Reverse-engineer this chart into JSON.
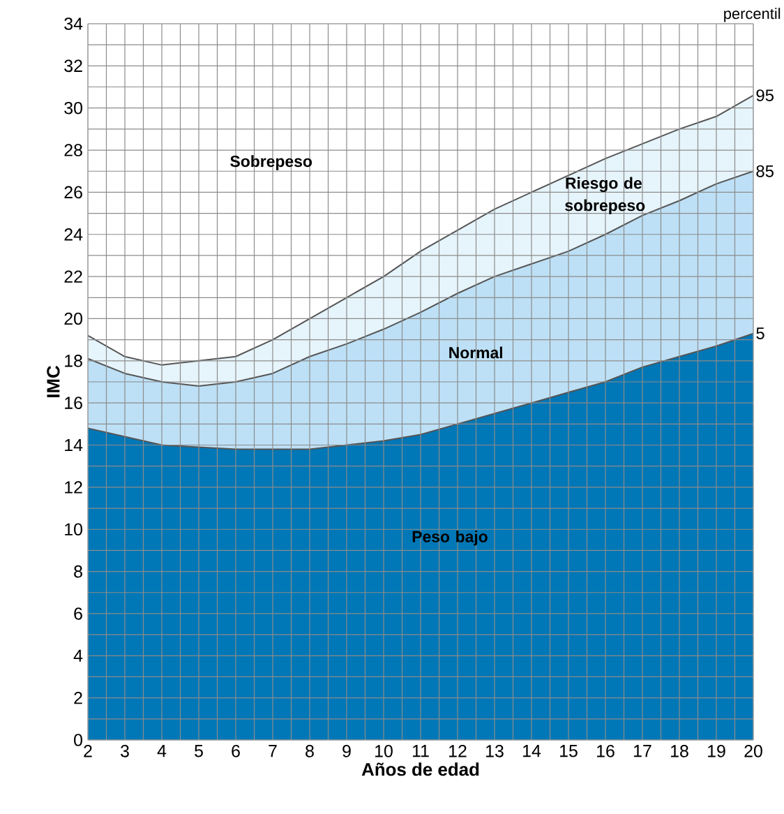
{
  "chart_data": {
    "type": "area",
    "xlabel": "Años de edad",
    "ylabel": "IMC",
    "x": [
      2,
      3,
      4,
      5,
      6,
      7,
      8,
      9,
      10,
      11,
      12,
      13,
      14,
      15,
      16,
      17,
      18,
      19,
      20
    ],
    "series": [
      {
        "name": "95",
        "color": "#e6f4fb",
        "values": [
          19.2,
          18.2,
          17.8,
          18.0,
          18.2,
          19.0,
          20.0,
          21.0,
          22.0,
          23.2,
          24.2,
          25.2,
          26.0,
          26.8,
          27.6,
          28.3,
          29.0,
          29.6,
          30.6
        ]
      },
      {
        "name": "85",
        "color": "#bde0f6",
        "values": [
          18.1,
          17.4,
          17.0,
          16.8,
          17.0,
          17.4,
          18.2,
          18.8,
          19.5,
          20.3,
          21.2,
          22.0,
          22.6,
          23.2,
          24.0,
          24.9,
          25.6,
          26.4,
          27.0
        ]
      },
      {
        "name": "5",
        "color": "#0077b6",
        "values": [
          14.8,
          14.4,
          14.0,
          13.9,
          13.8,
          13.8,
          13.8,
          14.0,
          14.2,
          14.5,
          15.0,
          15.5,
          16.0,
          16.5,
          17.0,
          17.7,
          18.2,
          18.7,
          19.3
        ]
      }
    ],
    "xlim": [
      2,
      20
    ],
    "ylim": [
      0,
      34
    ],
    "xticks": [
      2,
      3,
      4,
      5,
      6,
      7,
      8,
      9,
      10,
      11,
      12,
      13,
      14,
      15,
      16,
      17,
      18,
      19,
      20
    ],
    "yticks": [
      0,
      2,
      4,
      6,
      8,
      10,
      12,
      14,
      16,
      18,
      20,
      22,
      24,
      26,
      28,
      30,
      32,
      34
    ],
    "grid": true,
    "legend": false,
    "annotations": [
      "Sobrepeso",
      "Riesgo de sobrepeso",
      "Normal",
      "Peso bajo",
      "percentil"
    ]
  }
}
